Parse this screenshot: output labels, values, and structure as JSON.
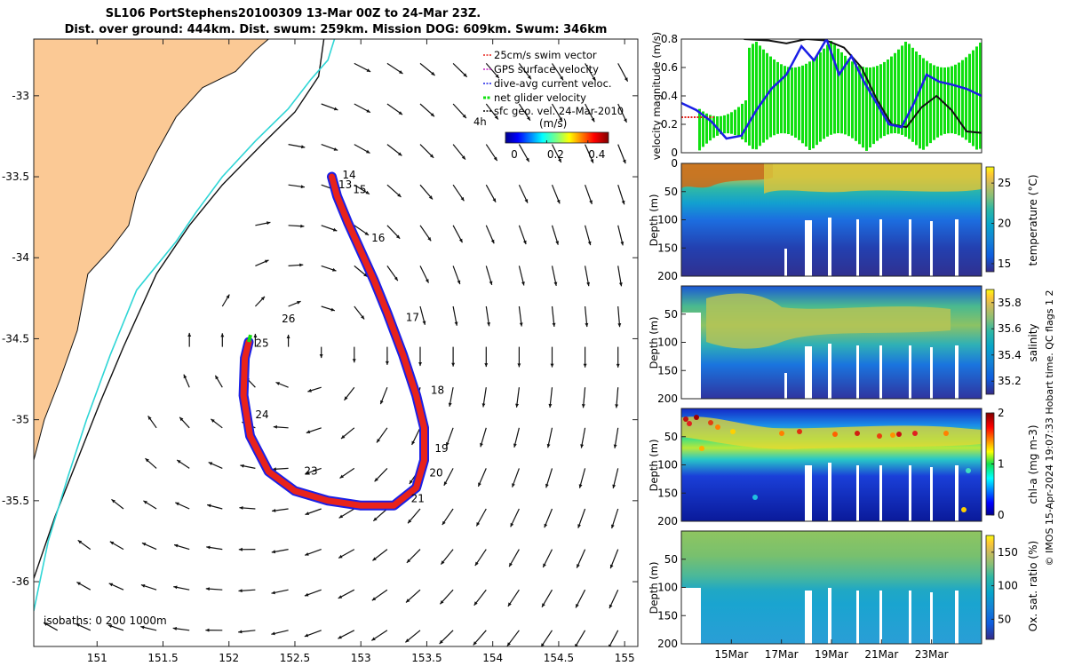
{
  "figure": {
    "title_line1": "SL106 PortStephens20100309 13-Mar 00Z to 24-Mar 23Z.",
    "title_line2": "Dist. over ground: 444km. Dist. swum: 259km. Mission DOG: 609km. Swum: 346km",
    "side_note": "© IMOS 15-Apr-2024 19:07:33 Hobart time. QC flags 1  2",
    "colors": {
      "land": "#fbc995",
      "coast": "#111111",
      "track_red": "#e8231b",
      "track_blue": "#1a1fe6",
      "green": "#10e010",
      "iso200": "#2fd6d6",
      "iso1000": "#111111"
    }
  },
  "chart_data": [
    {
      "type": "scatter",
      "name": "map",
      "title": "",
      "xlabel": "",
      "ylabel": "",
      "xlim": [
        150.52,
        155.1
      ],
      "ylim": [
        -36.4,
        -32.65
      ],
      "xticks": [
        "151",
        "151.5",
        "152",
        "152.5",
        "153",
        "153.5",
        "154",
        "154.5",
        "155"
      ],
      "yticks": [
        "-33",
        "-33.5",
        "-34",
        "-34.5",
        "-35",
        "-35.5",
        "-36"
      ],
      "legend": [
        {
          "label": "25cm/s swim vector",
          "color": "#e8231b"
        },
        {
          "label": "GPS surface velocity",
          "color": "#c020c0"
        },
        {
          "label": "dive-avg current veloc.",
          "color": "#1a1fe6"
        },
        {
          "label": "net glider velocity",
          "color": "#10e010"
        },
        {
          "label": "sfc geo. vel. 24-Mar-2010",
          "color": "#000000"
        }
      ],
      "colorbar": {
        "label": "(m/s)",
        "ticks": [
          "0",
          "0.2",
          "0.4"
        ],
        "range": [
          0,
          0.5
        ],
        "extra_label": "4h"
      },
      "isobath_label": "isobaths: 0  200  1000m",
      "track": [
        {
          "lon": 152.78,
          "lat": -33.5
        },
        {
          "lon": 152.82,
          "lat": -33.62
        },
        {
          "lon": 152.9,
          "lat": -33.78
        },
        {
          "lon": 153.0,
          "lat": -33.96
        },
        {
          "lon": 153.1,
          "lat": -34.14
        },
        {
          "lon": 153.2,
          "lat": -34.34
        },
        {
          "lon": 153.32,
          "lat": -34.6
        },
        {
          "lon": 153.42,
          "lat": -34.85
        },
        {
          "lon": 153.48,
          "lat": -35.05
        },
        {
          "lon": 153.48,
          "lat": -35.25
        },
        {
          "lon": 153.42,
          "lat": -35.42
        },
        {
          "lon": 153.25,
          "lat": -35.53
        },
        {
          "lon": 153.0,
          "lat": -35.53
        },
        {
          "lon": 152.75,
          "lat": -35.5
        },
        {
          "lon": 152.5,
          "lat": -35.44
        },
        {
          "lon": 152.3,
          "lat": -35.32
        },
        {
          "lon": 152.16,
          "lat": -35.1
        },
        {
          "lon": 152.11,
          "lat": -34.85
        },
        {
          "lon": 152.12,
          "lat": -34.62
        },
        {
          "lon": 152.15,
          "lat": -34.52
        }
      ],
      "day_labels": [
        {
          "text": "13",
          "lon": 152.83,
          "lat": -33.57
        },
        {
          "text": "14",
          "lon": 152.86,
          "lat": -33.51
        },
        {
          "text": "15",
          "lon": 152.94,
          "lat": -33.6
        },
        {
          "text": "16",
          "lon": 153.08,
          "lat": -33.9
        },
        {
          "text": "17",
          "lon": 153.34,
          "lat": -34.39
        },
        {
          "text": "18",
          "lon": 153.53,
          "lat": -34.84
        },
        {
          "text": "19",
          "lon": 153.56,
          "lat": -35.2
        },
        {
          "text": "20",
          "lon": 153.52,
          "lat": -35.35
        },
        {
          "text": "21",
          "lon": 153.38,
          "lat": -35.51
        },
        {
          "text": "23",
          "lon": 152.57,
          "lat": -35.34
        },
        {
          "text": "24",
          "lon": 152.2,
          "lat": -34.99
        },
        {
          "text": "25",
          "lon": 152.2,
          "lat": -34.55
        },
        {
          "text": "26",
          "lon": 152.4,
          "lat": -34.4
        }
      ],
      "coastline": [
        {
          "lon": 150.52,
          "lat": -35.6
        },
        {
          "lon": 150.52,
          "lat": -35.25
        },
        {
          "lon": 150.6,
          "lat": -35.0
        },
        {
          "lon": 150.72,
          "lat": -34.75
        },
        {
          "lon": 150.85,
          "lat": -34.45
        },
        {
          "lon": 150.93,
          "lat": -34.1
        },
        {
          "lon": 151.1,
          "lat": -33.95
        },
        {
          "lon": 151.24,
          "lat": -33.8
        },
        {
          "lon": 151.3,
          "lat": -33.6
        },
        {
          "lon": 151.45,
          "lat": -33.35
        },
        {
          "lon": 151.6,
          "lat": -33.13
        },
        {
          "lon": 151.8,
          "lat": -32.95
        },
        {
          "lon": 152.05,
          "lat": -32.85
        },
        {
          "lon": 152.2,
          "lat": -32.72
        },
        {
          "lon": 152.3,
          "lat": -32.65
        }
      ],
      "isobath_200": [
        {
          "lon": 150.52,
          "lat": -36.18
        },
        {
          "lon": 150.63,
          "lat": -35.75
        },
        {
          "lon": 150.78,
          "lat": -35.35
        },
        {
          "lon": 150.92,
          "lat": -35.0
        },
        {
          "lon": 151.1,
          "lat": -34.6
        },
        {
          "lon": 151.3,
          "lat": -34.2
        },
        {
          "lon": 151.6,
          "lat": -33.9
        },
        {
          "lon": 151.75,
          "lat": -33.72
        },
        {
          "lon": 151.95,
          "lat": -33.5
        },
        {
          "lon": 152.2,
          "lat": -33.28
        },
        {
          "lon": 152.45,
          "lat": -33.08
        },
        {
          "lon": 152.62,
          "lat": -32.9
        },
        {
          "lon": 152.75,
          "lat": -32.78
        },
        {
          "lon": 152.8,
          "lat": -32.65
        }
      ],
      "isobath_1000": [
        {
          "lon": 150.52,
          "lat": -35.98
        },
        {
          "lon": 150.68,
          "lat": -35.6
        },
        {
          "lon": 150.85,
          "lat": -35.25
        },
        {
          "lon": 151.02,
          "lat": -34.9
        },
        {
          "lon": 151.2,
          "lat": -34.55
        },
        {
          "lon": 151.45,
          "lat": -34.1
        },
        {
          "lon": 151.7,
          "lat": -33.8
        },
        {
          "lon": 151.95,
          "lat": -33.55
        },
        {
          "lon": 152.25,
          "lat": -33.3
        },
        {
          "lon": 152.5,
          "lat": -33.1
        },
        {
          "lon": 152.68,
          "lat": -32.88
        },
        {
          "lon": 152.72,
          "lat": -32.65
        }
      ]
    },
    {
      "type": "line",
      "name": "velocity",
      "ylabel": "velocity magnitude (m/s)",
      "ylim": [
        0,
        0.8
      ],
      "yticks": [
        "0",
        "0.2",
        "0.4",
        "0.6",
        "0.8"
      ],
      "series": [
        {
          "name": "dive-avg current veloc.",
          "color": "#1a1fe6",
          "t": [
            13.0,
            13.6,
            14.2,
            14.8,
            15.4,
            16.0,
            16.6,
            17.2,
            17.8,
            18.3,
            18.8,
            19.3,
            19.8,
            20.3,
            20.8,
            21.3,
            21.8,
            22.3,
            22.8,
            23.3,
            23.8,
            24.4,
            25.0
          ],
          "values": [
            0.35,
            0.3,
            0.22,
            0.1,
            0.12,
            0.3,
            0.45,
            0.55,
            0.75,
            0.65,
            0.8,
            0.55,
            0.68,
            0.5,
            0.35,
            0.2,
            0.18,
            0.35,
            0.55,
            0.5,
            0.48,
            0.45,
            0.4
          ]
        },
        {
          "name": "sfc geo. vel.",
          "color": "#000000",
          "t": [
            15.5,
            16.5,
            17.2,
            18.0,
            18.8,
            19.5,
            20.2,
            20.8,
            21.4,
            22.0,
            22.6,
            23.2,
            23.8,
            24.4,
            25.0
          ],
          "values": [
            0.8,
            0.79,
            0.77,
            0.8,
            0.79,
            0.74,
            0.6,
            0.38,
            0.2,
            0.18,
            0.32,
            0.4,
            0.3,
            0.15,
            0.14
          ]
        },
        {
          "name": "25cm/s swim vector",
          "color": "#e8231b",
          "t": [
            13.0,
            14.3
          ],
          "values": [
            0.25,
            0.25
          ]
        }
      ]
    },
    {
      "type": "heatmap",
      "name": "temperature",
      "ylabel": "Depth (m)",
      "colorbar_label": "temperature (°C)",
      "depth_range": [
        0,
        200
      ],
      "yticks": [
        "0",
        "50",
        "100",
        "150",
        "200"
      ],
      "cbar_range": [
        14,
        27
      ],
      "cbar_ticks": [
        "15",
        "20",
        "25"
      ],
      "colormap": "parula"
    },
    {
      "type": "heatmap",
      "name": "salinity",
      "ylabel": "Depth (m)",
      "colorbar_label": "salinity",
      "depth_range": [
        0,
        200
      ],
      "yticks": [
        "50",
        "100",
        "150",
        "200"
      ],
      "cbar_range": [
        35.1,
        35.9
      ],
      "cbar_ticks": [
        "35.2",
        "35.4",
        "35.6",
        "35.8"
      ],
      "colormap": "parula"
    },
    {
      "type": "heatmap",
      "name": "chla",
      "ylabel": "Depth (m)",
      "colorbar_label": "chl-a (mg m-3)",
      "depth_range": [
        0,
        200
      ],
      "yticks": [
        "50",
        "100",
        "150",
        "200"
      ],
      "cbar_range": [
        0,
        2
      ],
      "cbar_ticks": [
        "0",
        "1",
        "2"
      ],
      "colormap": "jet"
    },
    {
      "type": "heatmap",
      "name": "oxygen",
      "ylabel": "Depth (m)",
      "colorbar_label": "Ox. sat. ratio (%)",
      "depth_range": [
        0,
        200
      ],
      "yticks": [
        "50",
        "100",
        "150",
        "200"
      ],
      "cbar_range": [
        20,
        175
      ],
      "cbar_ticks": [
        "50",
        "100",
        "150"
      ],
      "colormap": "parula",
      "xticks": [
        "15Mar",
        "17Mar",
        "19Mar",
        "21Mar",
        "23Mar"
      ]
    }
  ]
}
